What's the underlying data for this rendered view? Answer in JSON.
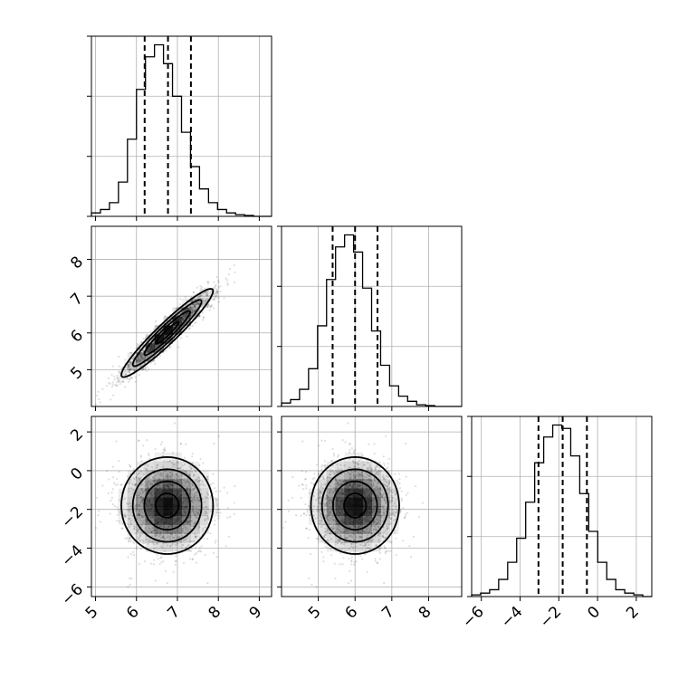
{
  "chart_data": {
    "type": "corner",
    "parameters": [
      {
        "ticks": [
          5,
          6,
          7,
          8,
          9
        ],
        "tick_labels": [
          "5",
          "6",
          "7",
          "8",
          "9"
        ],
        "range": [
          4.9,
          9.3
        ],
        "mean": 6.75,
        "std": 0.56,
        "quantiles": [
          6.2,
          6.77,
          7.33
        ],
        "hist_values": [
          0.02,
          0.04,
          0.08,
          0.2,
          0.45,
          0.74,
          0.93,
          1.0,
          0.89,
          0.7,
          0.49,
          0.29,
          0.16,
          0.08,
          0.04,
          0.02,
          0.01,
          0.005,
          0.0,
          0.0
        ]
      },
      {
        "ticks": [
          5,
          6,
          7,
          8
        ],
        "tick_labels": [
          "5",
          "6",
          "7",
          "8"
        ],
        "range": [
          4.0,
          8.9
        ],
        "mean": 6.0,
        "std": 0.6,
        "quantiles": [
          5.39,
          6.0,
          6.61
        ],
        "hist_values": [
          0.02,
          0.04,
          0.1,
          0.22,
          0.47,
          0.74,
          0.93,
          1.0,
          0.9,
          0.69,
          0.44,
          0.24,
          0.12,
          0.06,
          0.03,
          0.01,
          0.005,
          0.0,
          0.0,
          0.0
        ]
      },
      {
        "ticks": [
          -6,
          -4,
          -2,
          0,
          2
        ],
        "tick_labels": [
          "−6",
          "−4",
          "−2",
          "0",
          "2"
        ],
        "range": [
          -6.5,
          2.8
        ],
        "mean": -1.8,
        "std": 1.25,
        "quantiles": [
          -3.05,
          -1.8,
          -0.55
        ],
        "hist_values": [
          0.01,
          0.02,
          0.04,
          0.1,
          0.2,
          0.34,
          0.55,
          0.78,
          0.93,
          1.0,
          0.98,
          0.82,
          0.6,
          0.38,
          0.2,
          0.1,
          0.04,
          0.02,
          0.01,
          0.0
        ]
      }
    ],
    "correlations": {
      "0_1": 0.95,
      "0_2": 0.0,
      "1_2": 0.0
    },
    "scatter_samples": 1500,
    "density_bins": 20,
    "contour_levels": [
      0.118,
      0.393,
      0.675,
      0.865
    ],
    "grid": true
  }
}
